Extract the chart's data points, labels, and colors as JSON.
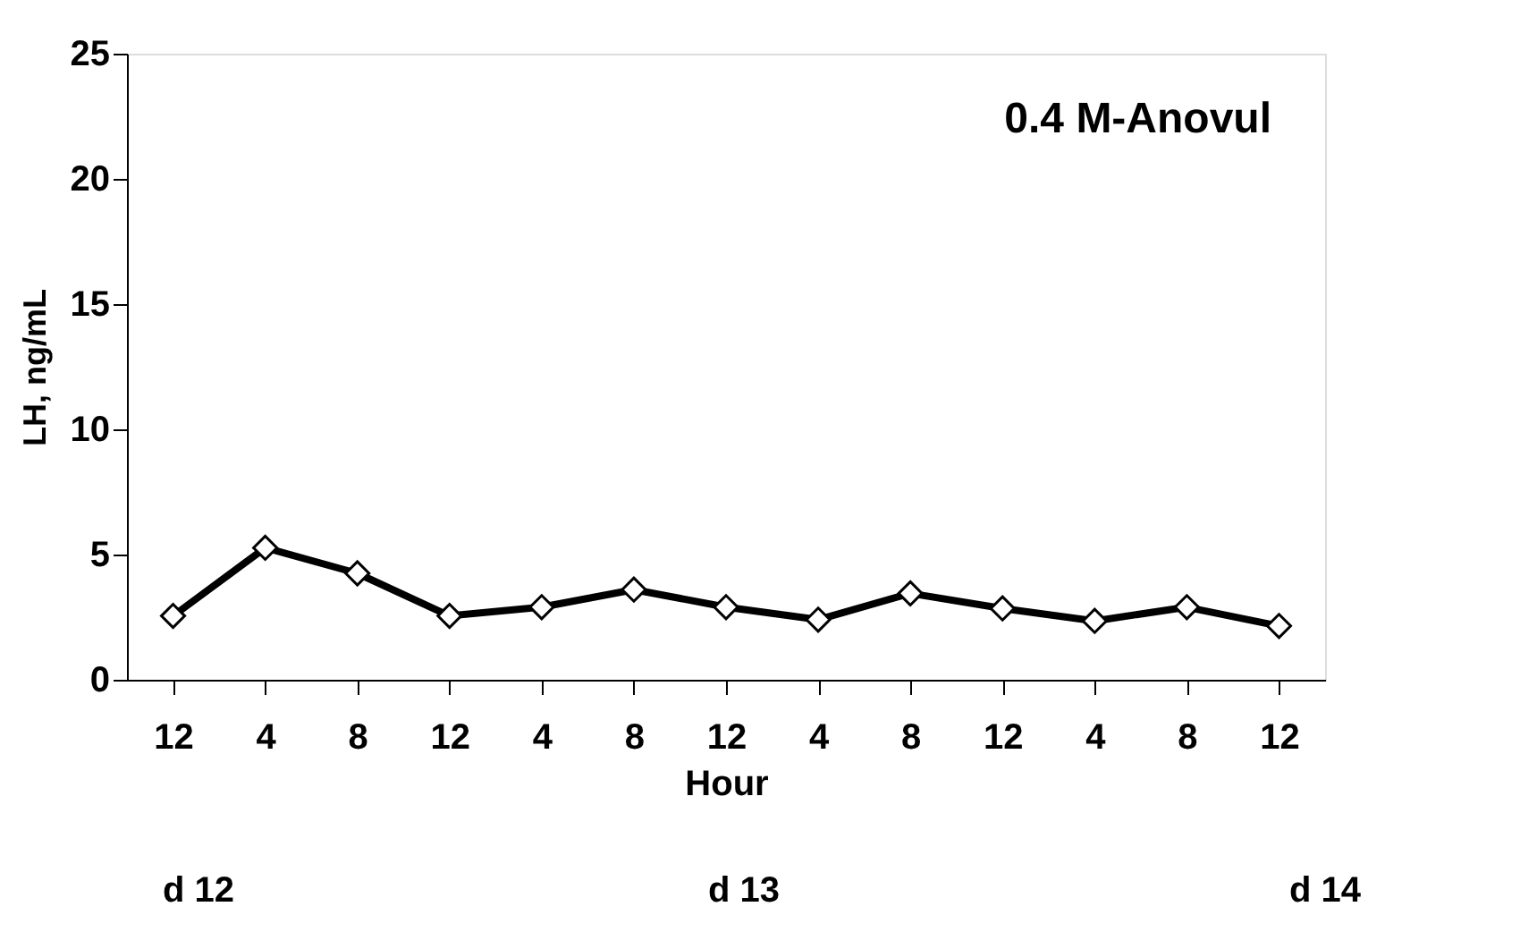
{
  "chart_data": {
    "type": "line",
    "title": "0.4 M-Anovul",
    "xlabel": "Hour",
    "ylabel": "LH, ng/mL",
    "categories": [
      "12",
      "4",
      "8",
      "12",
      "4",
      "8",
      "12",
      "4",
      "8",
      "12",
      "4",
      "8",
      "12"
    ],
    "series": [
      {
        "color": "#000000",
        "values": [
          2.55,
          5.27,
          4.25,
          2.55,
          2.9,
          3.6,
          2.9,
          2.4,
          3.45,
          2.85,
          2.35,
          2.9,
          2.15
        ]
      }
    ],
    "ylim": [
      0,
      25
    ],
    "yticks": [
      0,
      5,
      10,
      15,
      20,
      25
    ],
    "grid": false,
    "marker": "diamond",
    "line_style": "solid",
    "annotations": [
      "d 12",
      "d 13",
      "d 14"
    ]
  }
}
